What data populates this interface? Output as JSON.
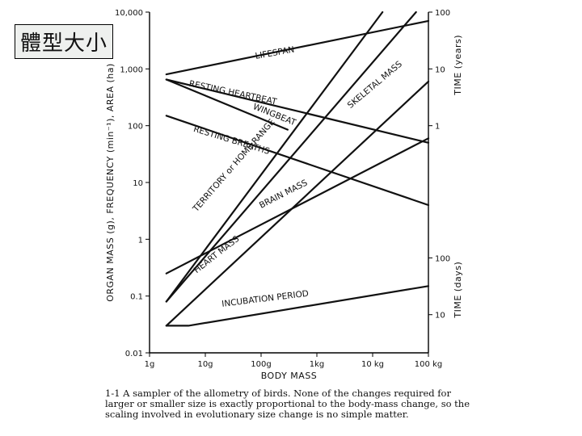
{
  "page_title": "體型大小",
  "caption": "1-1 A sampler of the allometry of birds. None of the changes required for larger or smaller size is exactly proportional to the body-mass change, so the scaling involved in evolutionary size change is no simple matter.",
  "chart_data": {
    "type": "line",
    "x_scale": "log",
    "xlabel": "BODY MASS",
    "xlim_g": [
      1,
      100000
    ],
    "x_ticks": [
      {
        "value": 1,
        "label": "1g"
      },
      {
        "value": 10,
        "label": "10g"
      },
      {
        "value": 100,
        "label": "100g"
      },
      {
        "value": 1000,
        "label": "1kg"
      },
      {
        "value": 10000,
        "label": "10 kg"
      },
      {
        "value": 100000,
        "label": "100 kg"
      }
    ],
    "y_scale": "log",
    "ylabel": "ORGAN MASS (g), FREQUENCY (min⁻¹), AREA (ha)",
    "ylim": [
      0.01,
      10000
    ],
    "y_ticks": [
      {
        "value": 0.01,
        "label": "0.01"
      },
      {
        "value": 0.1,
        "label": "0.1"
      },
      {
        "value": 1,
        "label": "1"
      },
      {
        "value": 10,
        "label": "10"
      },
      {
        "value": 100,
        "label": "100"
      },
      {
        "value": 1000,
        "label": "1,000"
      },
      {
        "value": 10000,
        "label": "10,000"
      }
    ],
    "right_upper_label": "TIME (years)",
    "right_upper_ticks": [
      {
        "at_y": 10000,
        "label": "100"
      },
      {
        "at_y": 1000,
        "label": "10"
      },
      {
        "at_y": 100,
        "label": "1"
      }
    ],
    "right_lower_label": "TIME (days)",
    "right_lower_ticks": [
      {
        "at_y": 0.47,
        "label": "100"
      },
      {
        "at_y": 0.047,
        "label": "10"
      }
    ],
    "series": [
      {
        "name": "LIFESPAN",
        "x": [
          2,
          100000
        ],
        "y": [
          800,
          7000
        ],
        "label_at": {
          "x": 80,
          "y": 1500,
          "angle": -10
        }
      },
      {
        "name": "RESTING HEARTBEAT",
        "x": [
          2,
          100000
        ],
        "y": [
          650,
          50
        ],
        "label_at": {
          "x": 5,
          "y": 500,
          "angle": 12
        }
      },
      {
        "name": "WINGBEAT",
        "x": [
          2,
          300
        ],
        "y": [
          650,
          85
        ],
        "label_at": {
          "x": 70,
          "y": 200,
          "angle": 22
        }
      },
      {
        "name": "RESTING BREATHS",
        "x": [
          2,
          100000
        ],
        "y": [
          150,
          4
        ],
        "label_at": {
          "x": 6,
          "y": 80,
          "angle": 17
        }
      },
      {
        "name": "SKELETAL MASS",
        "x": [
          2,
          60000
        ],
        "y": [
          0.08,
          10000
        ],
        "label_at": {
          "x": 4000,
          "y": 200,
          "angle": -40
        }
      },
      {
        "name": "TERRITORY or HOME RANGE",
        "x": [
          2,
          15000
        ],
        "y": [
          0.08,
          10000
        ],
        "label_at": {
          "x": 7,
          "y": 3,
          "angle": -49
        }
      },
      {
        "name": "BRAIN MASS",
        "x": [
          2,
          100000
        ],
        "y": [
          0.25,
          60
        ],
        "label_at": {
          "x": 100,
          "y": 3.5,
          "angle": -27
        }
      },
      {
        "name": "HEART MASS",
        "x": [
          2,
          100000
        ],
        "y": [
          0.03,
          600
        ],
        "label_at": {
          "x": 7,
          "y": 0.25,
          "angle": -38
        }
      },
      {
        "name": "INCUBATION PERIOD",
        "x": [
          2,
          5,
          100000
        ],
        "y": [
          0.03,
          0.03,
          0.15
        ],
        "label_at": {
          "x": 20,
          "y": 0.065,
          "angle": -7
        }
      }
    ]
  }
}
